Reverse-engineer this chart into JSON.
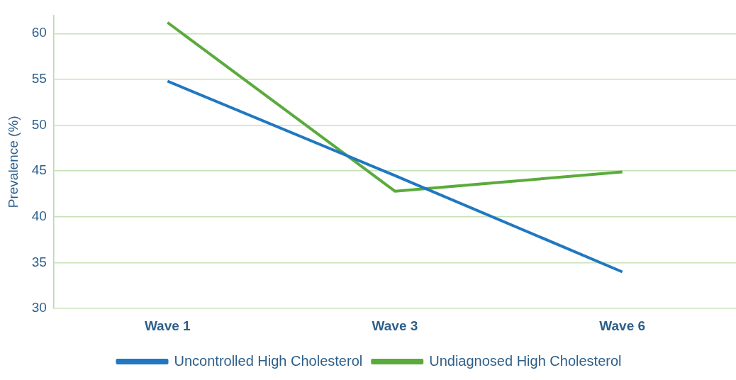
{
  "chart_data": {
    "type": "line",
    "ylabel": "Prevalence (%)",
    "categories": [
      "Wave 1",
      "Wave 3",
      "Wave 6"
    ],
    "series": [
      {
        "name": "Uncontrolled High Cholesterol",
        "color": "#1f78c1",
        "values": [
          54.8,
          44.5,
          34.0
        ]
      },
      {
        "name": "Undiagnosed High Cholesterol",
        "color": "#5aab3c",
        "values": [
          61.2,
          42.8,
          44.9
        ]
      }
    ],
    "ylim": [
      30,
      62
    ],
    "yticks": [
      30,
      35,
      40,
      45,
      50,
      55,
      60
    ],
    "grid": "y",
    "legend": "bottom",
    "marker": "none",
    "line_style": "solid"
  }
}
